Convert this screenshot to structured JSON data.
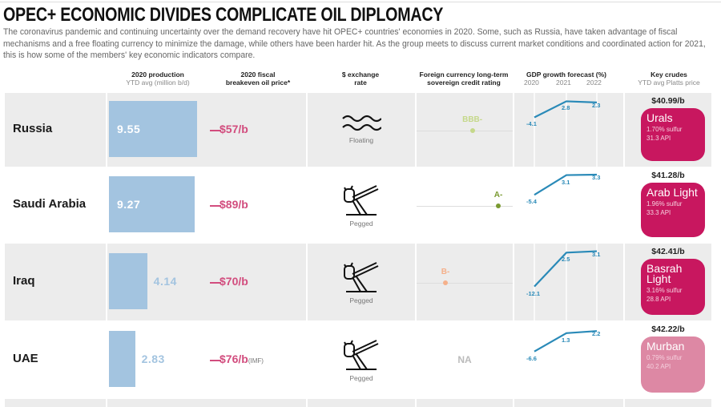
{
  "title": "OPEC+ ECONOMIC DIVIDES COMPLICATE OIL DIPLOMACY",
  "description": "The coronavirus pandemic and continuing uncertainty over the demand recovery have hit OPEC+ countries' economies in 2020. Some, such as Russia, have taken advantage of fiscal mechanisms and a free floating currency to minimize the damage, while others have been harder hit. As the group meets to discuss current market conditions and coordinated action for 2021, this is how some of the members' key economic indicators compare.",
  "headers": {
    "production": "2020 production",
    "production_sub": "YTD avg (million b/d)",
    "breakeven": "2020 fiscal",
    "breakeven2": "breakeven oil price*",
    "exchange": "$ exchange",
    "exchange2": "rate",
    "rating": "Foreign currency long-term",
    "rating2": "sovereign credit rating",
    "gdp": "GDP growth forecast (%)",
    "gdp_years": [
      "2020",
      "2021",
      "2022"
    ],
    "crudes": "Key crudes",
    "crudes_sub": "YTD avg Platts price"
  },
  "colors": {
    "bar": "#a3c4e0",
    "breakeven": "#d24d7e",
    "gdp": "#2a8ab8",
    "crude": "#c8175f",
    "crude_light": "#dd88a4"
  },
  "chart_data": {
    "type": "table",
    "title": "OPEC+ ECONOMIC DIVIDES COMPLICATE OIL DIPLOMACY",
    "rows": [
      {
        "country": "Russia",
        "production": 9.55,
        "production_label": "9.55",
        "breakeven": "$57/b",
        "breakeven_note": "",
        "exchange": "Floating",
        "exchange_icon": "waves-icon",
        "rating": "BBB-",
        "rating_pos": 0.58,
        "rating_color": "#c5d88a",
        "gdp": [
          -4.1,
          2.8,
          2.3
        ],
        "gdp_labels": [
          "-4.1",
          "2.8",
          "2.3"
        ],
        "price": "$40.99/b",
        "crude": "Urals",
        "sulfur": "1.70% sulfur",
        "api": "31.3 API",
        "crude_color": "#c8175f"
      },
      {
        "country": "Saudi Arabia",
        "production": 9.27,
        "production_label": "9.27",
        "breakeven": "$89/b",
        "breakeven_note": "",
        "exchange": "Pegged",
        "exchange_icon": "peg-icon",
        "rating": "A-",
        "rating_pos": 0.85,
        "rating_color": "#7a9a30",
        "gdp": [
          -5.4,
          3.1,
          3.3
        ],
        "gdp_labels": [
          "-5.4",
          "3.1",
          "3.3"
        ],
        "price": "$41.28/b",
        "crude": "Arab Light",
        "sulfur": "1.96% sulfur",
        "api": "33.3 API",
        "crude_color": "#c8175f"
      },
      {
        "country": "Iraq",
        "production": 4.14,
        "production_label": "4.14",
        "breakeven": "$70/b",
        "breakeven_note": "",
        "exchange": "Pegged",
        "exchange_icon": "peg-icon",
        "rating": "B-",
        "rating_pos": 0.3,
        "rating_color": "#f5b08a",
        "gdp": [
          -12.1,
          2.5,
          3.1
        ],
        "gdp_labels": [
          "-12.1",
          "2.5",
          "3.1"
        ],
        "price": "$42.41/b",
        "crude": "Basrah Light",
        "sulfur": "3.16% sulfur",
        "api": "28.8 API",
        "crude_color": "#c8175f"
      },
      {
        "country": "UAE",
        "production": 2.83,
        "production_label": "2.83",
        "breakeven": "$76/b",
        "breakeven_note": "(IMF)",
        "exchange": "Pegged",
        "exchange_icon": "peg-icon",
        "rating": "NA",
        "rating_pos": null,
        "rating_color": "#bbbbbb",
        "gdp": [
          -6.6,
          1.3,
          2.2
        ],
        "gdp_labels": [
          "-6.6",
          "1.3",
          "2.2"
        ],
        "price": "$42.22/b",
        "crude": "Murban",
        "sulfur": "0.79% sulfur",
        "api": "40.2 API",
        "crude_color": "#dd88a4"
      }
    ]
  }
}
